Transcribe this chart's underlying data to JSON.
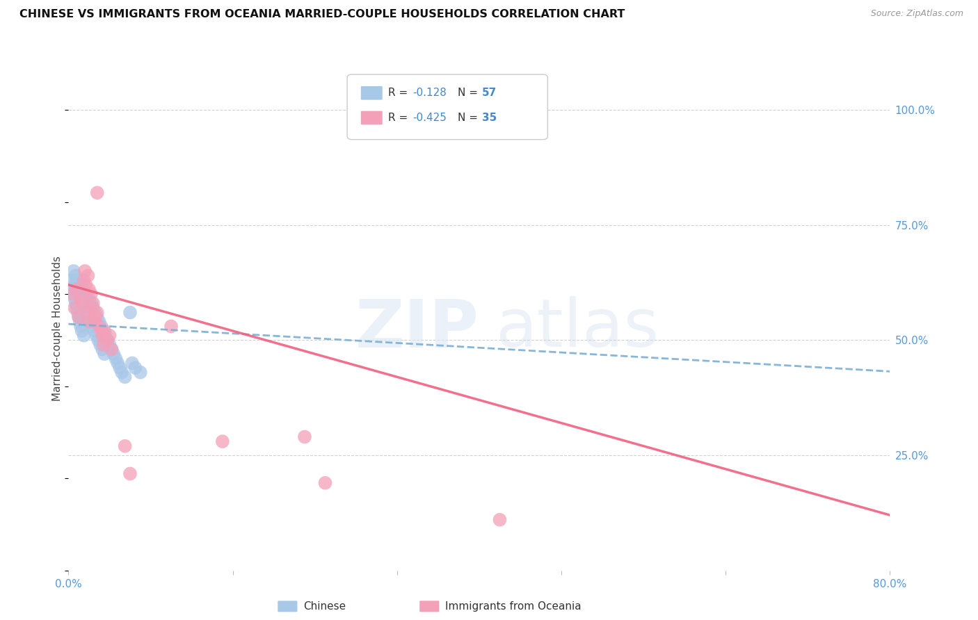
{
  "title": "CHINESE VS IMMIGRANTS FROM OCEANIA MARRIED-COUPLE HOUSEHOLDS CORRELATION CHART",
  "source": "Source: ZipAtlas.com",
  "ylabel": "Married-couple Households",
  "xlim": [
    0.0,
    0.8
  ],
  "ylim": [
    0.0,
    1.05
  ],
  "xticks": [
    0.0,
    0.16,
    0.32,
    0.48,
    0.64,
    0.8
  ],
  "xticklabels": [
    "0.0%",
    "",
    "",
    "",
    "",
    "80.0%"
  ],
  "yticks_right": [
    0.0,
    0.25,
    0.5,
    0.75,
    1.0
  ],
  "yticklabels_right": [
    "",
    "25.0%",
    "50.0%",
    "75.0%",
    "100.0%"
  ],
  "grid_color": "#cccccc",
  "background_color": "#ffffff",
  "color_blue": "#a8c8e8",
  "color_pink": "#f4a0b8",
  "trendline_blue_color": "#7aafd4",
  "trendline_pink_color": "#f06080",
  "blue_scatter": [
    [
      0.003,
      0.63
    ],
    [
      0.004,
      0.61
    ],
    [
      0.005,
      0.65
    ],
    [
      0.005,
      0.6
    ],
    [
      0.006,
      0.62
    ],
    [
      0.006,
      0.59
    ],
    [
      0.007,
      0.64
    ],
    [
      0.007,
      0.58
    ],
    [
      0.008,
      0.63
    ],
    [
      0.008,
      0.57
    ],
    [
      0.009,
      0.62
    ],
    [
      0.009,
      0.56
    ],
    [
      0.01,
      0.61
    ],
    [
      0.01,
      0.55
    ],
    [
      0.011,
      0.6
    ],
    [
      0.011,
      0.54
    ],
    [
      0.012,
      0.62
    ],
    [
      0.012,
      0.53
    ],
    [
      0.013,
      0.59
    ],
    [
      0.013,
      0.52
    ],
    [
      0.014,
      0.61
    ],
    [
      0.015,
      0.58
    ],
    [
      0.015,
      0.51
    ],
    [
      0.016,
      0.57
    ],
    [
      0.017,
      0.6
    ],
    [
      0.018,
      0.56
    ],
    [
      0.019,
      0.55
    ],
    [
      0.02,
      0.59
    ],
    [
      0.021,
      0.54
    ],
    [
      0.022,
      0.58
    ],
    [
      0.023,
      0.53
    ],
    [
      0.024,
      0.57
    ],
    [
      0.025,
      0.52
    ],
    [
      0.026,
      0.56
    ],
    [
      0.027,
      0.51
    ],
    [
      0.028,
      0.55
    ],
    [
      0.029,
      0.5
    ],
    [
      0.03,
      0.54
    ],
    [
      0.031,
      0.49
    ],
    [
      0.032,
      0.53
    ],
    [
      0.033,
      0.48
    ],
    [
      0.034,
      0.52
    ],
    [
      0.035,
      0.47
    ],
    [
      0.036,
      0.51
    ],
    [
      0.038,
      0.5
    ],
    [
      0.04,
      0.49
    ],
    [
      0.042,
      0.48
    ],
    [
      0.044,
      0.47
    ],
    [
      0.046,
      0.46
    ],
    [
      0.048,
      0.45
    ],
    [
      0.05,
      0.44
    ],
    [
      0.052,
      0.43
    ],
    [
      0.055,
      0.42
    ],
    [
      0.06,
      0.56
    ],
    [
      0.062,
      0.45
    ],
    [
      0.065,
      0.44
    ],
    [
      0.07,
      0.43
    ]
  ],
  "pink_scatter": [
    [
      0.004,
      0.6
    ],
    [
      0.006,
      0.57
    ],
    [
      0.008,
      0.61
    ],
    [
      0.01,
      0.55
    ],
    [
      0.012,
      0.59
    ],
    [
      0.013,
      0.58
    ],
    [
      0.015,
      0.63
    ],
    [
      0.016,
      0.65
    ],
    [
      0.017,
      0.62
    ],
    [
      0.018,
      0.56
    ],
    [
      0.019,
      0.64
    ],
    [
      0.02,
      0.61
    ],
    [
      0.02,
      0.54
    ],
    [
      0.022,
      0.6
    ],
    [
      0.022,
      0.57
    ],
    [
      0.024,
      0.58
    ],
    [
      0.025,
      0.54
    ],
    [
      0.026,
      0.55
    ],
    [
      0.028,
      0.56
    ],
    [
      0.028,
      0.82
    ],
    [
      0.03,
      0.53
    ],
    [
      0.032,
      0.52
    ],
    [
      0.033,
      0.51
    ],
    [
      0.034,
      0.49
    ],
    [
      0.035,
      0.52
    ],
    [
      0.038,
      0.5
    ],
    [
      0.04,
      0.51
    ],
    [
      0.042,
      0.48
    ],
    [
      0.1,
      0.53
    ],
    [
      0.15,
      0.28
    ],
    [
      0.23,
      0.29
    ],
    [
      0.25,
      0.19
    ],
    [
      0.42,
      0.11
    ],
    [
      0.055,
      0.27
    ],
    [
      0.06,
      0.21
    ]
  ],
  "blue_trend_x": [
    0.0,
    0.8
  ],
  "blue_trend_y": [
    0.535,
    0.432
  ],
  "pink_trend_x": [
    0.0,
    0.8
  ],
  "pink_trend_y": [
    0.62,
    0.12
  ]
}
